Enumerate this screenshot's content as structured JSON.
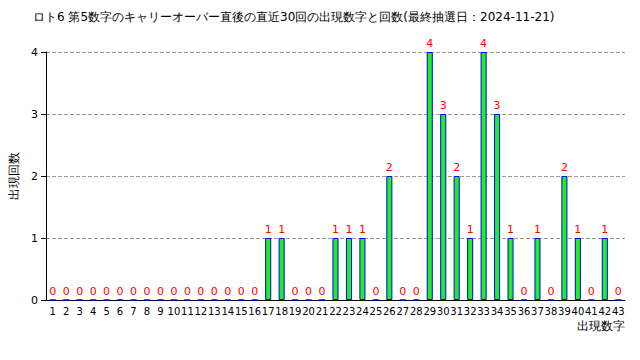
{
  "chart_data": {
    "type": "bar",
    "title": "ロト6 第5数字のキャリーオーバー直後の直近30回の出現数字と回数(最終抽選日：2024-11-21)",
    "x_label": "出現数字",
    "y_label": "出現回数",
    "categories": [
      "1",
      "2",
      "3",
      "4",
      "5",
      "6",
      "7",
      "8",
      "9",
      "10",
      "11",
      "12",
      "13",
      "14",
      "15",
      "16",
      "17",
      "18",
      "19",
      "20",
      "21",
      "22",
      "23",
      "24",
      "25",
      "26",
      "27",
      "28",
      "29",
      "30",
      "31",
      "32",
      "33",
      "34",
      "35",
      "36",
      "37",
      "38",
      "39",
      "40",
      "41",
      "42",
      "43"
    ],
    "values": [
      0,
      0,
      0,
      0,
      0,
      0,
      0,
      0,
      0,
      0,
      0,
      0,
      0,
      0,
      0,
      0,
      1,
      1,
      0,
      0,
      0,
      1,
      1,
      1,
      0,
      2,
      0,
      0,
      4,
      3,
      2,
      1,
      4,
      3,
      1,
      0,
      1,
      0,
      2,
      1,
      0,
      1,
      0
    ],
    "color": "#22ee22",
    "ylim": [
      0,
      4
    ],
    "yticks": [
      0,
      1,
      2,
      3,
      4
    ],
    "grid": true,
    "data_labels": true
  }
}
